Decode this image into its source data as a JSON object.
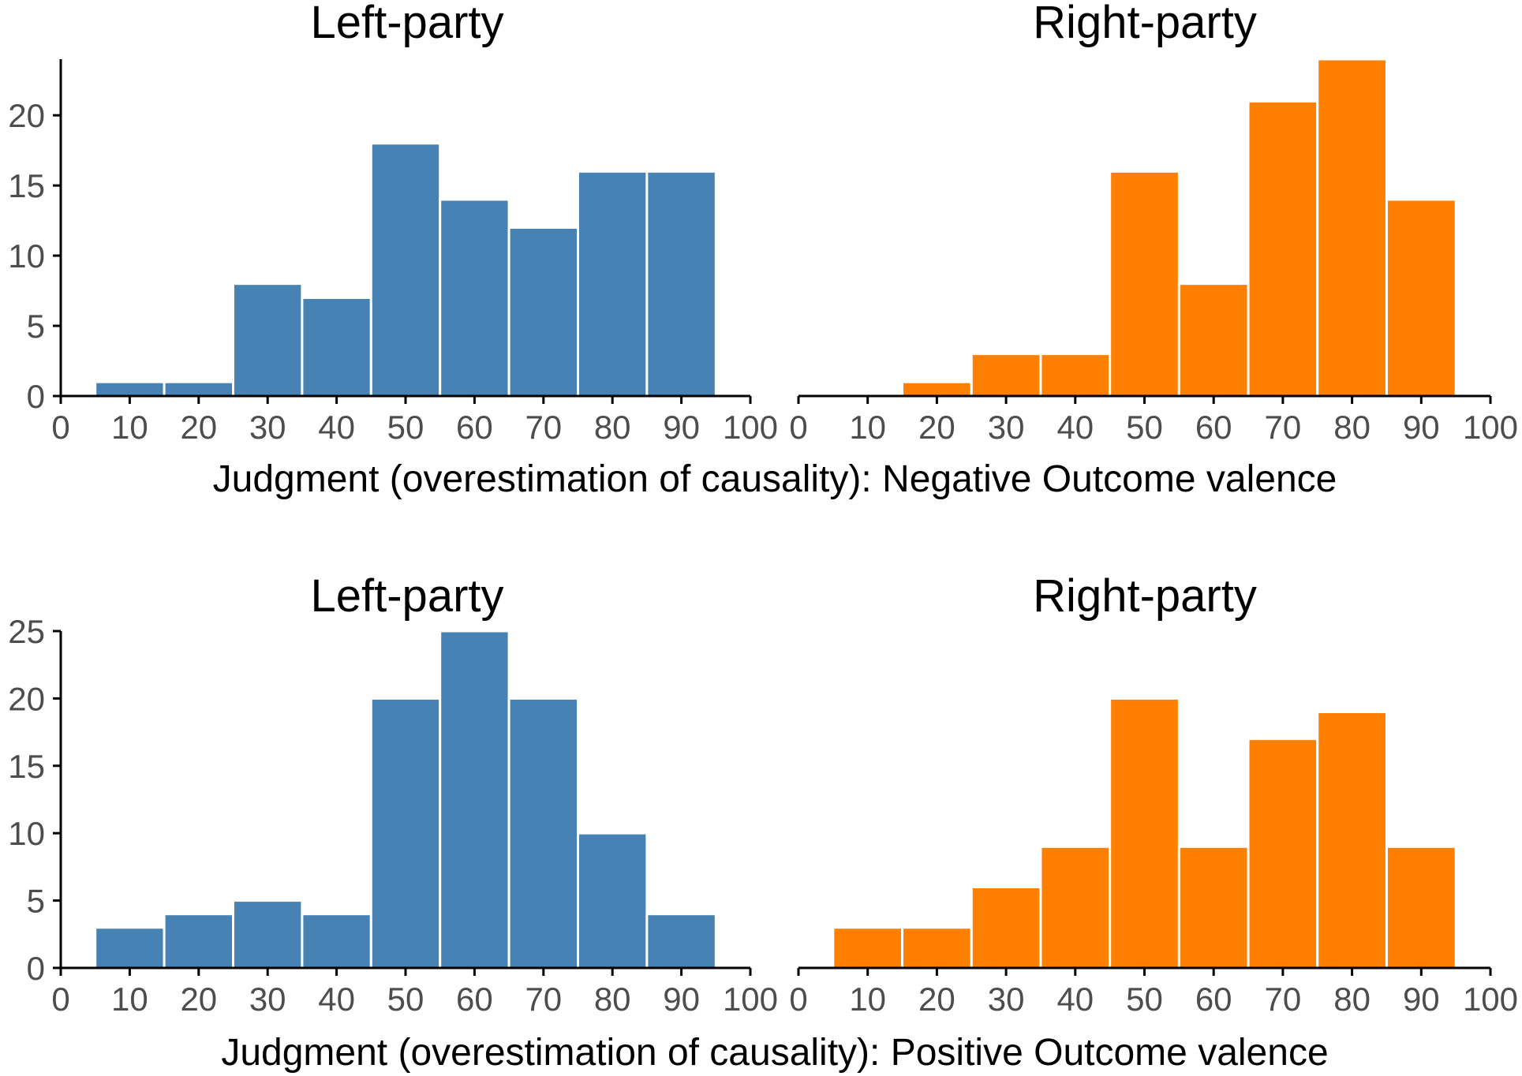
{
  "colors": {
    "left": "#4682b4",
    "right": "#ff7f00"
  },
  "chart_data": [
    {
      "type": "bar",
      "title": "Left-party",
      "color": "#4682b4",
      "categories": [
        10,
        20,
        30,
        40,
        50,
        60,
        70,
        80,
        90
      ],
      "values": [
        1,
        1,
        8,
        7,
        18,
        14,
        12,
        16,
        16
      ],
      "bin_width": 10,
      "xlim": [
        0,
        100
      ],
      "ylim": [
        0,
        24
      ],
      "xticks": [
        0,
        10,
        20,
        30,
        40,
        50,
        60,
        70,
        80,
        90,
        100
      ],
      "yticks": [
        0,
        5,
        10,
        15,
        20
      ],
      "xlabel": "",
      "ylabel": "",
      "grid": false
    },
    {
      "type": "bar",
      "title": "Right-party",
      "color": "#ff7f00",
      "categories": [
        10,
        20,
        30,
        40,
        50,
        60,
        70,
        80,
        90
      ],
      "values": [
        0,
        1,
        3,
        3,
        16,
        8,
        21,
        24,
        14
      ],
      "bin_width": 10,
      "xlim": [
        0,
        100
      ],
      "ylim": [
        0,
        24
      ],
      "xticks": [
        0,
        10,
        20,
        30,
        40,
        50,
        60,
        70,
        80,
        90,
        100
      ],
      "yticks": [],
      "xlabel": "",
      "ylabel": "",
      "grid": false
    },
    {
      "type": "bar",
      "title": "Left-party",
      "color": "#4682b4",
      "categories": [
        10,
        20,
        30,
        40,
        50,
        60,
        70,
        80,
        90
      ],
      "values": [
        3,
        4,
        5,
        4,
        20,
        25,
        20,
        10,
        4
      ],
      "bin_width": 10,
      "xlim": [
        0,
        100
      ],
      "ylim": [
        0,
        25
      ],
      "xticks": [
        0,
        10,
        20,
        30,
        40,
        50,
        60,
        70,
        80,
        90,
        100
      ],
      "yticks": [
        0,
        5,
        10,
        15,
        20,
        25
      ],
      "xlabel": "",
      "ylabel": "",
      "grid": false
    },
    {
      "type": "bar",
      "title": "Right-party",
      "color": "#ff7f00",
      "categories": [
        10,
        20,
        30,
        40,
        50,
        60,
        70,
        80,
        90
      ],
      "values": [
        3,
        3,
        6,
        9,
        20,
        9,
        17,
        19,
        9
      ],
      "bin_width": 10,
      "xlim": [
        0,
        100
      ],
      "ylim": [
        0,
        25
      ],
      "xticks": [
        0,
        10,
        20,
        30,
        40,
        50,
        60,
        70,
        80,
        90,
        100
      ],
      "yticks": [],
      "xlabel": "",
      "ylabel": "",
      "grid": false
    }
  ],
  "row_labels": {
    "top": "Judgment (overestimation of causality): Negative Outcome valence",
    "bottom": "Judgment (overestimation of causality): Positive Outcome valence"
  }
}
